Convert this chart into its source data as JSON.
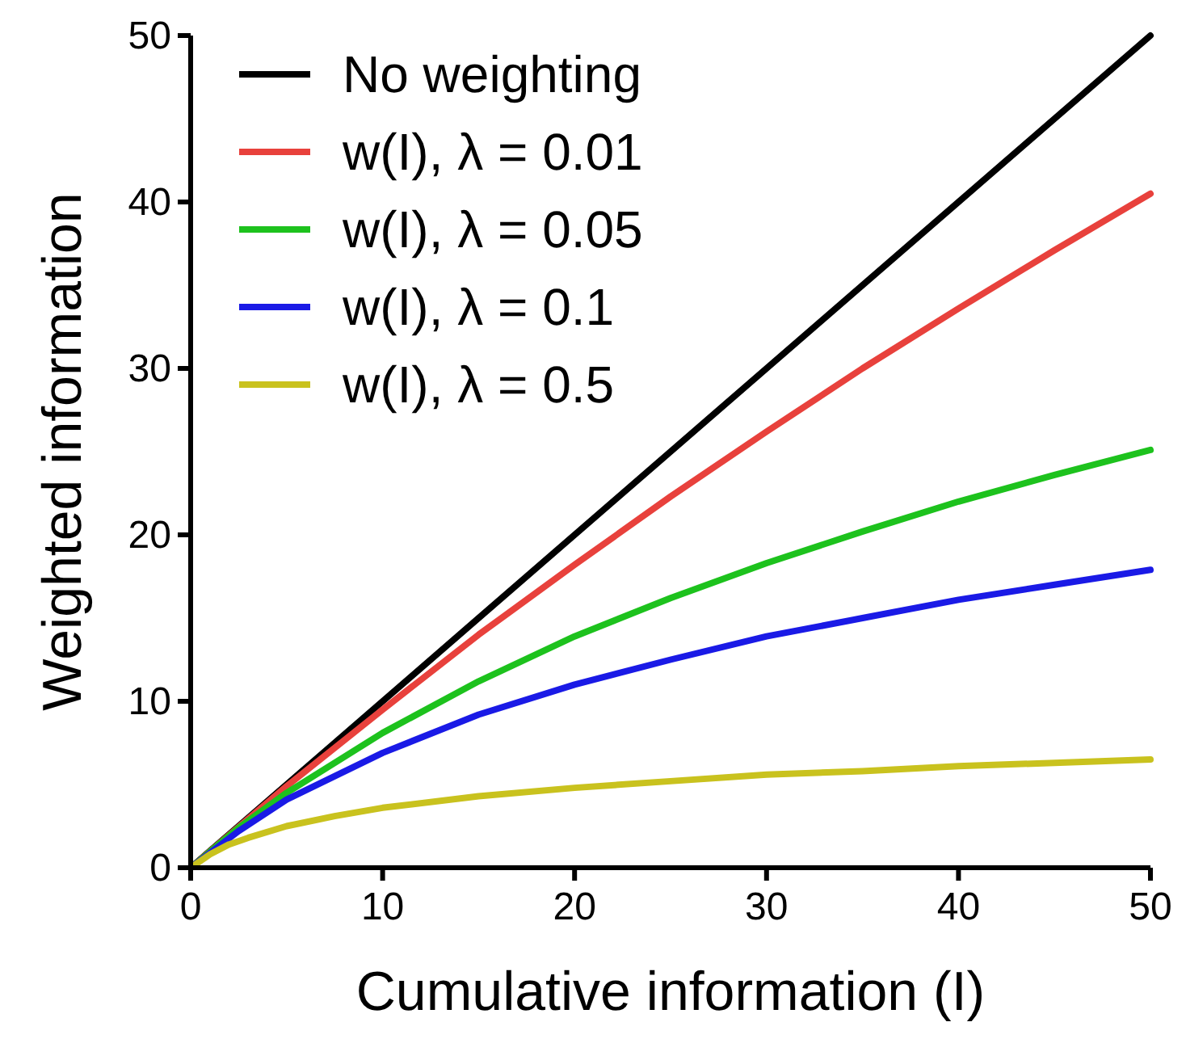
{
  "chart_data": {
    "type": "line",
    "xlabel": "Cumulative information (I)",
    "ylabel": "Weighted information",
    "xlim": [
      0,
      50
    ],
    "ylim": [
      0,
      50
    ],
    "xticks": [
      0,
      10,
      20,
      30,
      40,
      50
    ],
    "yticks": [
      0,
      10,
      20,
      30,
      40,
      50
    ],
    "grid": false,
    "legend": "top left",
    "marker": "none",
    "line_style": "solid",
    "series": [
      {
        "name": "No weighting",
        "color": "#000000",
        "x": [
          0,
          50
        ],
        "values": [
          0,
          50
        ]
      },
      {
        "name": "w(I), λ = 0.01",
        "color": "#e8413c",
        "x": [
          0,
          5,
          10,
          15,
          20,
          25,
          30,
          35,
          40,
          45,
          50
        ],
        "values": [
          0,
          4.9,
          9.5,
          14.0,
          18.2,
          22.3,
          26.2,
          30.0,
          33.6,
          37.1,
          40.5
        ]
      },
      {
        "name": "w(I), λ = 0.05",
        "color": "#1dc21d",
        "x": [
          0,
          2.5,
          5,
          10,
          15,
          20,
          25,
          30,
          35,
          40,
          45,
          50
        ],
        "values": [
          0,
          2.4,
          4.5,
          8.1,
          11.2,
          13.9,
          16.2,
          18.3,
          20.2,
          22.0,
          23.6,
          25.1
        ]
      },
      {
        "name": "w(I), λ = 0.1",
        "color": "#1a1ae6",
        "x": [
          0,
          2.5,
          5,
          10,
          15,
          20,
          25,
          30,
          35,
          40,
          45,
          50
        ],
        "values": [
          0,
          2.2,
          4.1,
          6.9,
          9.2,
          11.0,
          12.5,
          13.9,
          15.0,
          16.1,
          17.0,
          17.9
        ]
      },
      {
        "name": "w(I), λ = 0.5",
        "color": "#c9c21e",
        "x": [
          0,
          1,
          2,
          3,
          5,
          7.5,
          10,
          15,
          20,
          25,
          30,
          35,
          40,
          45,
          50
        ],
        "values": [
          0,
          0.8,
          1.4,
          1.8,
          2.5,
          3.1,
          3.6,
          4.3,
          4.8,
          5.2,
          5.6,
          5.8,
          6.1,
          6.3,
          6.5
        ]
      }
    ]
  }
}
